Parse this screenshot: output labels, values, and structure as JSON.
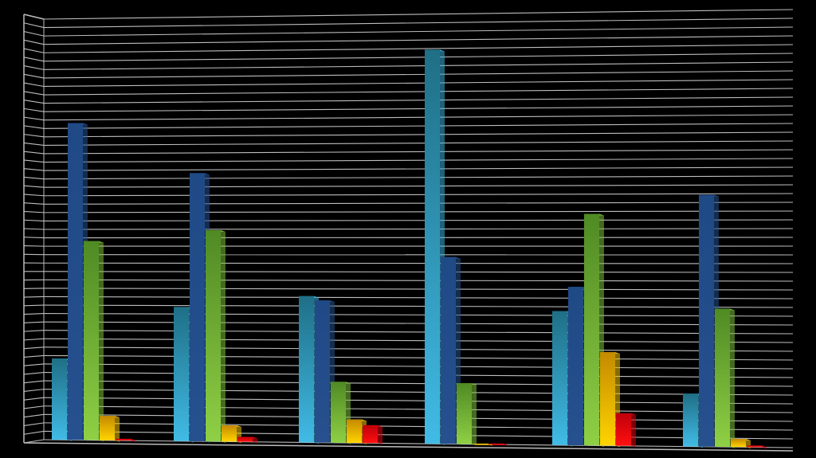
{
  "chart_data": {
    "type": "bar",
    "categories": [
      "",
      "",
      "",
      "",
      "",
      ""
    ],
    "ylim": [
      0,
      50
    ],
    "grid": true,
    "series": [
      {
        "values": [
          10,
          16.5,
          18,
          48.5,
          16.5,
          6.5
        ]
      },
      {
        "values": [
          39,
          33,
          17.5,
          23,
          19.5,
          31
        ]
      },
      {
        "values": [
          24.5,
          26,
          7.5,
          7.5,
          28.5,
          17
        ]
      },
      {
        "values": [
          3,
          2,
          2.9,
          0,
          11.5,
          1
        ]
      },
      {
        "values": [
          0.2,
          0.6,
          2.2,
          0.1,
          4,
          0.2
        ]
      }
    ],
    "colors": {
      "background": "#000000",
      "grid": "#bdbdbd",
      "series": [
        "#3ab0d8",
        "#24508c",
        "#7ec03a",
        "#f2c400",
        "#e3000f"
      ]
    }
  }
}
